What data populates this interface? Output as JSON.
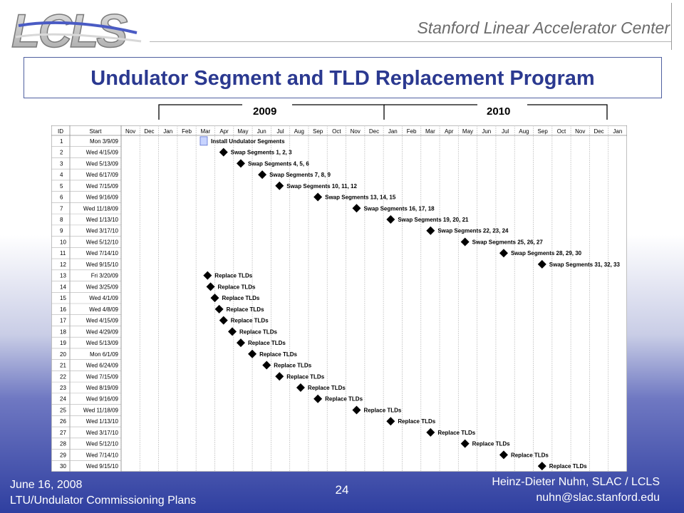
{
  "header": {
    "logo_text": "LCLS",
    "organization": "Stanford Linear Accelerator Center"
  },
  "slide": {
    "title": "Undulator Segment and TLD Replacement Program"
  },
  "years": [
    "2009",
    "2010"
  ],
  "footer": {
    "date": "June 16, 2008",
    "subtitle": "LTU/Undulator Commissioning Plans",
    "page": "24",
    "author": "Heinz-Dieter Nuhn, SLAC / LCLS",
    "email": "nuhn@slac.stanford.edu"
  },
  "colors": {
    "title": "#2b3990",
    "milestone": "#000000",
    "summary_task": "#c8d4ff"
  },
  "chart_data": {
    "type": "table",
    "columns": {
      "id": "ID",
      "start": "Start"
    },
    "months": [
      "Nov",
      "Dec",
      "Jan",
      "Feb",
      "Mar",
      "Apr",
      "May",
      "Jun",
      "Jul",
      "Aug",
      "Sep",
      "Oct",
      "Nov",
      "Dec",
      "Jan",
      "Feb",
      "Mar",
      "Apr",
      "May",
      "Jun",
      "Jul",
      "Aug",
      "Sep",
      "Oct",
      "Nov",
      "Dec",
      "Jan"
    ],
    "timeline_start": "2008-11-01",
    "rows": [
      {
        "id": "1",
        "start": "Mon 3/9/09",
        "date": "2009-03-09",
        "label": "Install Undulator Segments",
        "type": "task"
      },
      {
        "id": "2",
        "start": "Wed 4/15/09",
        "date": "2009-04-15",
        "label": "Swap Segments   1,   2,   3",
        "type": "milestone"
      },
      {
        "id": "3",
        "start": "Wed 5/13/09",
        "date": "2009-05-13",
        "label": "Swap Segments   4,   5,   6",
        "type": "milestone"
      },
      {
        "id": "4",
        "start": "Wed 6/17/09",
        "date": "2009-06-17",
        "label": "Swap Segments   7,   8,   9",
        "type": "milestone"
      },
      {
        "id": "5",
        "start": "Wed 7/15/09",
        "date": "2009-07-15",
        "label": "Swap Segments 10, 11, 12",
        "type": "milestone"
      },
      {
        "id": "6",
        "start": "Wed 9/16/09",
        "date": "2009-09-16",
        "label": "Swap Segments 13, 14, 15",
        "type": "milestone"
      },
      {
        "id": "7",
        "start": "Wed 11/18/09",
        "date": "2009-11-18",
        "label": "Swap Segments 16, 17, 18",
        "type": "milestone"
      },
      {
        "id": "8",
        "start": "Wed 1/13/10",
        "date": "2010-01-13",
        "label": "Swap Segments 19, 20, 21",
        "type": "milestone"
      },
      {
        "id": "9",
        "start": "Wed 3/17/10",
        "date": "2010-03-17",
        "label": "Swap Segments 22, 23, 24",
        "type": "milestone"
      },
      {
        "id": "10",
        "start": "Wed 5/12/10",
        "date": "2010-05-12",
        "label": "Swap Segments 25, 26, 27",
        "type": "milestone"
      },
      {
        "id": "11",
        "start": "Wed 7/14/10",
        "date": "2010-07-14",
        "label": "Swap Segments 28, 29, 30",
        "type": "milestone"
      },
      {
        "id": "12",
        "start": "Wed 9/15/10",
        "date": "2010-09-15",
        "label": "Swap Segments 31, 32, 33",
        "type": "milestone"
      },
      {
        "id": "13",
        "start": "Fri 3/20/09",
        "date": "2009-03-20",
        "label": "Replace TLDs",
        "type": "milestone"
      },
      {
        "id": "14",
        "start": "Wed 3/25/09",
        "date": "2009-03-25",
        "label": "Replace TLDs",
        "type": "milestone"
      },
      {
        "id": "15",
        "start": "Wed 4/1/09",
        "date": "2009-04-01",
        "label": "Replace TLDs",
        "type": "milestone"
      },
      {
        "id": "16",
        "start": "Wed 4/8/09",
        "date": "2009-04-08",
        "label": "Replace TLDs",
        "type": "milestone"
      },
      {
        "id": "17",
        "start": "Wed 4/15/09",
        "date": "2009-04-15",
        "label": "Replace TLDs",
        "type": "milestone"
      },
      {
        "id": "18",
        "start": "Wed 4/29/09",
        "date": "2009-04-29",
        "label": "Replace TLDs",
        "type": "milestone"
      },
      {
        "id": "19",
        "start": "Wed 5/13/09",
        "date": "2009-05-13",
        "label": "Replace TLDs",
        "type": "milestone"
      },
      {
        "id": "20",
        "start": "Mon 6/1/09",
        "date": "2009-06-01",
        "label": "Replace TLDs",
        "type": "milestone"
      },
      {
        "id": "21",
        "start": "Wed 6/24/09",
        "date": "2009-06-24",
        "label": "Replace TLDs",
        "type": "milestone"
      },
      {
        "id": "22",
        "start": "Wed 7/15/09",
        "date": "2009-07-15",
        "label": "Replace TLDs",
        "type": "milestone"
      },
      {
        "id": "23",
        "start": "Wed 8/19/09",
        "date": "2009-08-19",
        "label": "Replace TLDs",
        "type": "milestone"
      },
      {
        "id": "24",
        "start": "Wed 9/16/09",
        "date": "2009-09-16",
        "label": "Replace TLDs",
        "type": "milestone"
      },
      {
        "id": "25",
        "start": "Wed 11/18/09",
        "date": "2009-11-18",
        "label": "Replace TLDs",
        "type": "milestone"
      },
      {
        "id": "26",
        "start": "Wed 1/13/10",
        "date": "2010-01-13",
        "label": "Replace TLDs",
        "type": "milestone"
      },
      {
        "id": "27",
        "start": "Wed 3/17/10",
        "date": "2010-03-17",
        "label": "Replace TLDs",
        "type": "milestone"
      },
      {
        "id": "28",
        "start": "Wed 5/12/10",
        "date": "2010-05-12",
        "label": "Replace TLDs",
        "type": "milestone"
      },
      {
        "id": "29",
        "start": "Wed 7/14/10",
        "date": "2010-07-14",
        "label": "Replace TLDs",
        "type": "milestone"
      },
      {
        "id": "30",
        "start": "Wed 9/15/10",
        "date": "2010-09-15",
        "label": "Replace TLDs",
        "type": "milestone"
      }
    ]
  }
}
